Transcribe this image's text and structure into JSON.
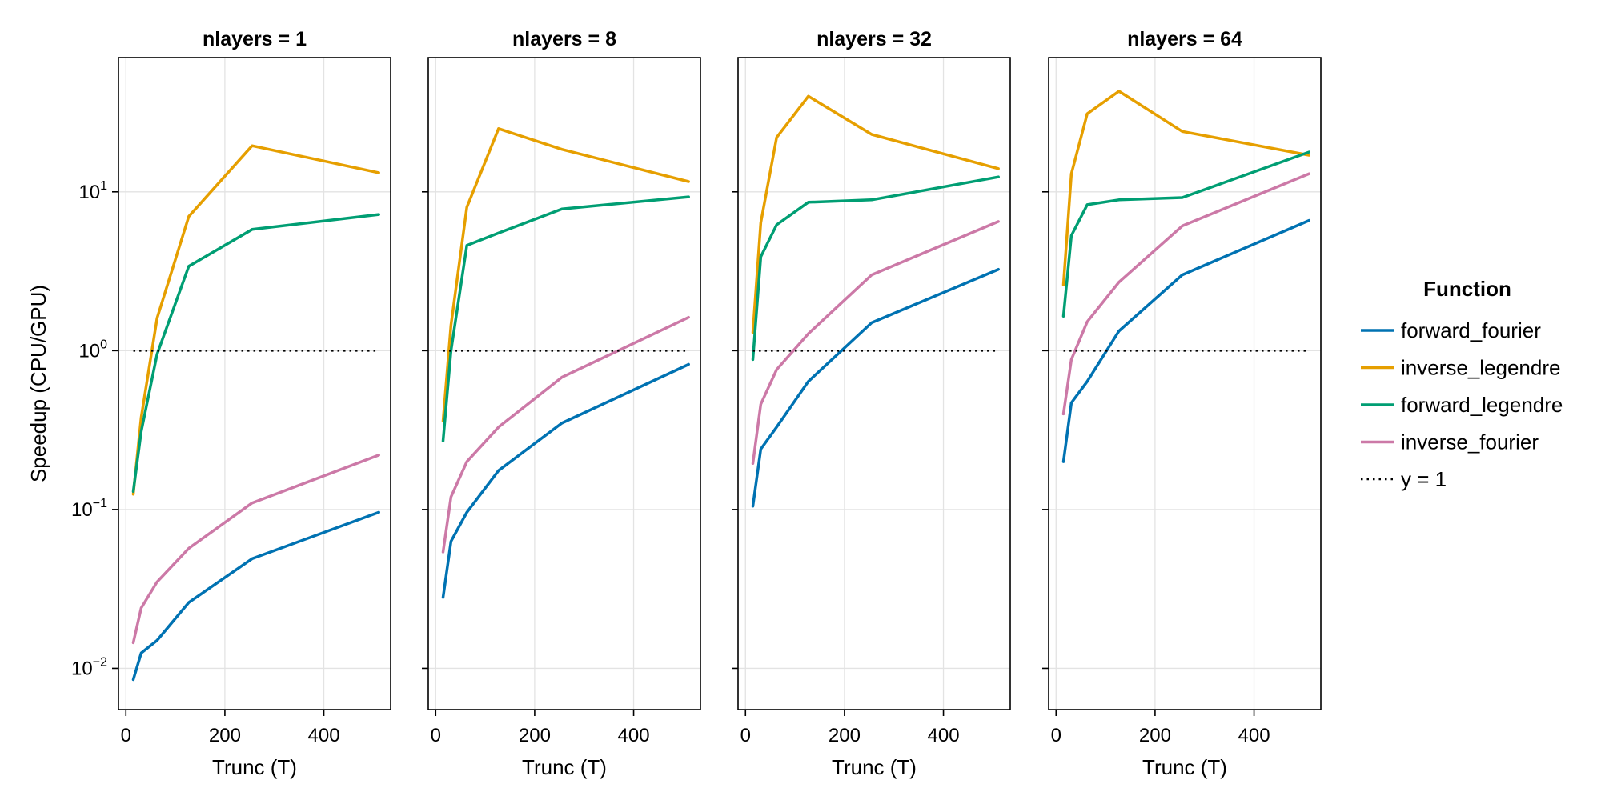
{
  "chart_data": {
    "type": "line",
    "layout": "facet",
    "y_scale": "log10",
    "ylabel": "Speedup (CPU/GPU)",
    "xlabel": "Trunc (T)",
    "xlim": [
      -15,
      535
    ],
    "ylim": [
      0.0055,
      70
    ],
    "x_ticks": [
      0,
      200,
      400
    ],
    "y_ticks": [
      {
        "value": 0.01,
        "base": "10",
        "exp": "−2"
      },
      {
        "value": 0.1,
        "base": "10",
        "exp": "−1"
      },
      {
        "value": 1,
        "base": "10",
        "exp": "0"
      },
      {
        "value": 10,
        "base": "10",
        "exp": "1"
      }
    ],
    "grid": true,
    "legend": {
      "title": "Function",
      "placement": "right",
      "entries": [
        {
          "name": "forward_fourier",
          "color": "#0072b2",
          "style": "solid"
        },
        {
          "name": "inverse_legendre",
          "color": "#e69f00",
          "style": "solid"
        },
        {
          "name": "forward_legendre",
          "color": "#009e73",
          "style": "solid"
        },
        {
          "name": "inverse_fourier",
          "color": "#cc79a7",
          "style": "solid"
        },
        {
          "name": "y = 1",
          "color": "#000000",
          "style": "dotted"
        }
      ]
    },
    "reference_line": {
      "y": 1,
      "x_from": 15,
      "x_to": 511
    },
    "x": [
      15,
      31,
      63,
      127,
      255,
      511
    ],
    "panels": [
      {
        "title": "nlayers = 1",
        "series": [
          {
            "name": "forward_fourier",
            "values": [
              0.0085,
              0.0125,
              0.015,
              0.026,
              0.049,
              0.096
            ]
          },
          {
            "name": "inverse_legendre",
            "values": [
              0.125,
              0.38,
              1.6,
              7.0,
              19.5,
              13.2
            ]
          },
          {
            "name": "forward_legendre",
            "values": [
              0.13,
              0.31,
              0.95,
              3.4,
              5.8,
              7.2
            ]
          },
          {
            "name": "inverse_fourier",
            "values": [
              0.0145,
              0.024,
              0.035,
              0.057,
              0.11,
              0.22
            ]
          }
        ]
      },
      {
        "title": "nlayers = 8",
        "series": [
          {
            "name": "forward_fourier",
            "values": [
              0.028,
              0.063,
              0.096,
              0.176,
              0.35,
              0.82
            ]
          },
          {
            "name": "inverse_legendre",
            "values": [
              0.36,
              1.45,
              8.0,
              25.0,
              18.5,
              11.6
            ]
          },
          {
            "name": "forward_legendre",
            "values": [
              0.27,
              1.0,
              4.6,
              5.5,
              7.8,
              9.3
            ]
          },
          {
            "name": "inverse_fourier",
            "values": [
              0.054,
              0.12,
              0.2,
              0.33,
              0.68,
              1.62
            ]
          }
        ]
      },
      {
        "title": "nlayers = 32",
        "series": [
          {
            "name": "forward_fourier",
            "values": [
              0.105,
              0.24,
              0.33,
              0.64,
              1.5,
              3.25
            ]
          },
          {
            "name": "inverse_legendre",
            "values": [
              1.3,
              6.4,
              22.0,
              40.0,
              23.0,
              14.0
            ]
          },
          {
            "name": "forward_legendre",
            "values": [
              0.88,
              3.9,
              6.2,
              8.6,
              8.9,
              12.4
            ]
          },
          {
            "name": "inverse_fourier",
            "values": [
              0.195,
              0.46,
              0.76,
              1.28,
              3.0,
              6.5
            ]
          }
        ]
      },
      {
        "title": "nlayers = 64",
        "series": [
          {
            "name": "forward_fourier",
            "values": [
              0.2,
              0.47,
              0.64,
              1.33,
              3.0,
              6.6
            ]
          },
          {
            "name": "inverse_legendre",
            "values": [
              2.6,
              13.0,
              31.0,
              43.0,
              24.0,
              17.0
            ]
          },
          {
            "name": "forward_legendre",
            "values": [
              1.65,
              5.3,
              8.3,
              8.9,
              9.2,
              17.8
            ]
          },
          {
            "name": "inverse_fourier",
            "values": [
              0.4,
              0.88,
              1.52,
              2.7,
              6.1,
              13.0
            ]
          }
        ]
      }
    ]
  }
}
